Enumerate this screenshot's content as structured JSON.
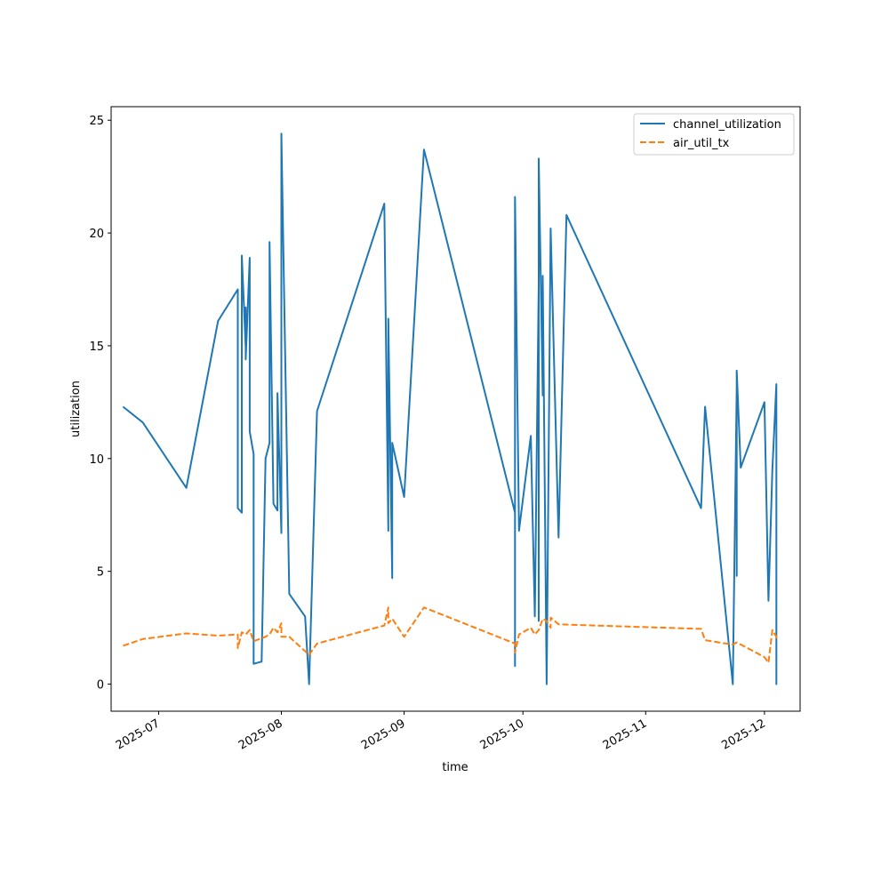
{
  "chart_data": {
    "type": "line",
    "xlabel": "time",
    "ylabel": "utilization",
    "ylim": [
      -1.2,
      25.6
    ],
    "xlim": [
      "2025-06-19",
      "2025-12-10"
    ],
    "y_ticks": [
      0,
      5,
      10,
      15,
      20,
      25
    ],
    "x_ticks": [
      {
        "date": "2025-07-01",
        "label": "2025-07"
      },
      {
        "date": "2025-08-01",
        "label": "2025-08"
      },
      {
        "date": "2025-09-01",
        "label": "2025-09"
      },
      {
        "date": "2025-10-01",
        "label": "2025-10"
      },
      {
        "date": "2025-11-01",
        "label": "2025-11"
      },
      {
        "date": "2025-12-01",
        "label": "2025-12"
      }
    ],
    "legend_position": "top-right",
    "grid": false,
    "series": [
      {
        "name": "channel_utilization",
        "color": "#1f77b4",
        "dash": "solid",
        "points": [
          [
            "2025-06-22",
            12.3
          ],
          [
            "2025-06-27",
            11.6
          ],
          [
            "2025-07-08",
            8.7
          ],
          [
            "2025-07-16",
            16.1
          ],
          [
            "2025-07-21",
            17.5
          ],
          [
            "2025-07-21",
            7.8
          ],
          [
            "2025-07-22",
            7.6
          ],
          [
            "2025-07-22",
            19.0
          ],
          [
            "2025-07-23",
            14.9
          ],
          [
            "2025-07-23",
            16.7
          ],
          [
            "2025-07-23",
            14.4
          ],
          [
            "2025-07-24",
            18.9
          ],
          [
            "2025-07-24",
            11.2
          ],
          [
            "2025-07-25",
            10.2
          ],
          [
            "2025-07-25",
            0.9
          ],
          [
            "2025-07-27",
            1.0
          ],
          [
            "2025-07-28",
            10.0
          ],
          [
            "2025-07-29",
            10.7
          ],
          [
            "2025-07-29",
            19.6
          ],
          [
            "2025-07-30",
            8.0
          ],
          [
            "2025-07-31",
            7.7
          ],
          [
            "2025-07-31",
            12.9
          ],
          [
            "2025-08-01",
            6.7
          ],
          [
            "2025-08-01",
            19.4
          ],
          [
            "2025-08-01",
            24.4
          ],
          [
            "2025-08-03",
            4.0
          ],
          [
            "2025-08-07",
            3.0
          ],
          [
            "2025-08-08",
            0.0
          ],
          [
            "2025-08-10",
            12.1
          ],
          [
            "2025-08-27",
            21.3
          ],
          [
            "2025-08-28",
            6.8
          ],
          [
            "2025-08-28",
            16.2
          ],
          [
            "2025-08-29",
            4.7
          ],
          [
            "2025-08-29",
            10.7
          ],
          [
            "2025-09-01",
            8.3
          ],
          [
            "2025-09-06",
            23.7
          ],
          [
            "2025-09-29",
            7.6
          ],
          [
            "2025-09-29",
            0.8
          ],
          [
            "2025-09-29",
            21.6
          ],
          [
            "2025-09-30",
            6.8
          ],
          [
            "2025-10-03",
            11.0
          ],
          [
            "2025-10-04",
            3.0
          ],
          [
            "2025-10-05",
            17.8
          ],
          [
            "2025-10-05",
            2.8
          ],
          [
            "2025-10-05",
            23.3
          ],
          [
            "2025-10-06",
            12.8
          ],
          [
            "2025-10-06",
            18.1
          ],
          [
            "2025-10-07",
            0.0
          ],
          [
            "2025-10-08",
            20.2
          ],
          [
            "2025-10-10",
            6.5
          ],
          [
            "2025-10-12",
            20.8
          ],
          [
            "2025-11-15",
            7.8
          ],
          [
            "2025-11-16",
            12.3
          ],
          [
            "2025-11-23",
            0.0
          ],
          [
            "2025-11-24",
            13.1
          ],
          [
            "2025-11-24",
            4.8
          ],
          [
            "2025-11-24",
            13.9
          ],
          [
            "2025-11-25",
            9.6
          ],
          [
            "2025-12-01",
            12.5
          ],
          [
            "2025-12-02",
            3.7
          ],
          [
            "2025-12-03",
            9.5
          ],
          [
            "2025-12-04",
            13.3
          ],
          [
            "2025-12-04",
            0.0
          ],
          [
            "2025-12-04",
            4.0
          ]
        ]
      },
      {
        "name": "air_util_tx",
        "color": "#ff7f0e",
        "dash": "dashed",
        "points": [
          [
            "2025-06-22",
            1.7
          ],
          [
            "2025-06-27",
            2.0
          ],
          [
            "2025-07-08",
            2.25
          ],
          [
            "2025-07-16",
            2.15
          ],
          [
            "2025-07-21",
            2.2
          ],
          [
            "2025-07-21",
            1.6
          ],
          [
            "2025-07-22",
            2.3
          ],
          [
            "2025-07-23",
            2.2
          ],
          [
            "2025-07-24",
            2.4
          ],
          [
            "2025-07-25",
            1.9
          ],
          [
            "2025-07-28",
            2.1
          ],
          [
            "2025-07-29",
            2.2
          ],
          [
            "2025-07-30",
            2.5
          ],
          [
            "2025-07-31",
            2.3
          ],
          [
            "2025-08-01",
            2.7
          ],
          [
            "2025-08-01",
            2.1
          ],
          [
            "2025-08-03",
            2.1
          ],
          [
            "2025-08-08",
            1.3
          ],
          [
            "2025-08-10",
            1.8
          ],
          [
            "2025-08-27",
            2.6
          ],
          [
            "2025-08-28",
            3.4
          ],
          [
            "2025-08-28",
            2.7
          ],
          [
            "2025-08-29",
            2.9
          ],
          [
            "2025-09-01",
            2.1
          ],
          [
            "2025-09-06",
            3.4
          ],
          [
            "2025-09-29",
            1.8
          ],
          [
            "2025-09-29",
            1.4
          ],
          [
            "2025-09-30",
            2.2
          ],
          [
            "2025-10-03",
            2.5
          ],
          [
            "2025-10-04",
            2.2
          ],
          [
            "2025-10-05",
            2.4
          ],
          [
            "2025-10-06",
            2.9
          ],
          [
            "2025-10-07",
            2.8
          ],
          [
            "2025-10-08",
            2.5
          ],
          [
            "2025-10-08",
            2.95
          ],
          [
            "2025-10-10",
            2.65
          ],
          [
            "2025-11-15",
            2.45
          ],
          [
            "2025-11-16",
            1.95
          ],
          [
            "2025-11-23",
            1.75
          ],
          [
            "2025-11-24",
            1.85
          ],
          [
            "2025-12-01",
            1.2
          ],
          [
            "2025-12-02",
            0.95
          ],
          [
            "2025-12-03",
            2.4
          ],
          [
            "2025-12-04",
            2.1
          ],
          [
            "2025-12-04",
            1.9
          ]
        ]
      }
    ]
  }
}
